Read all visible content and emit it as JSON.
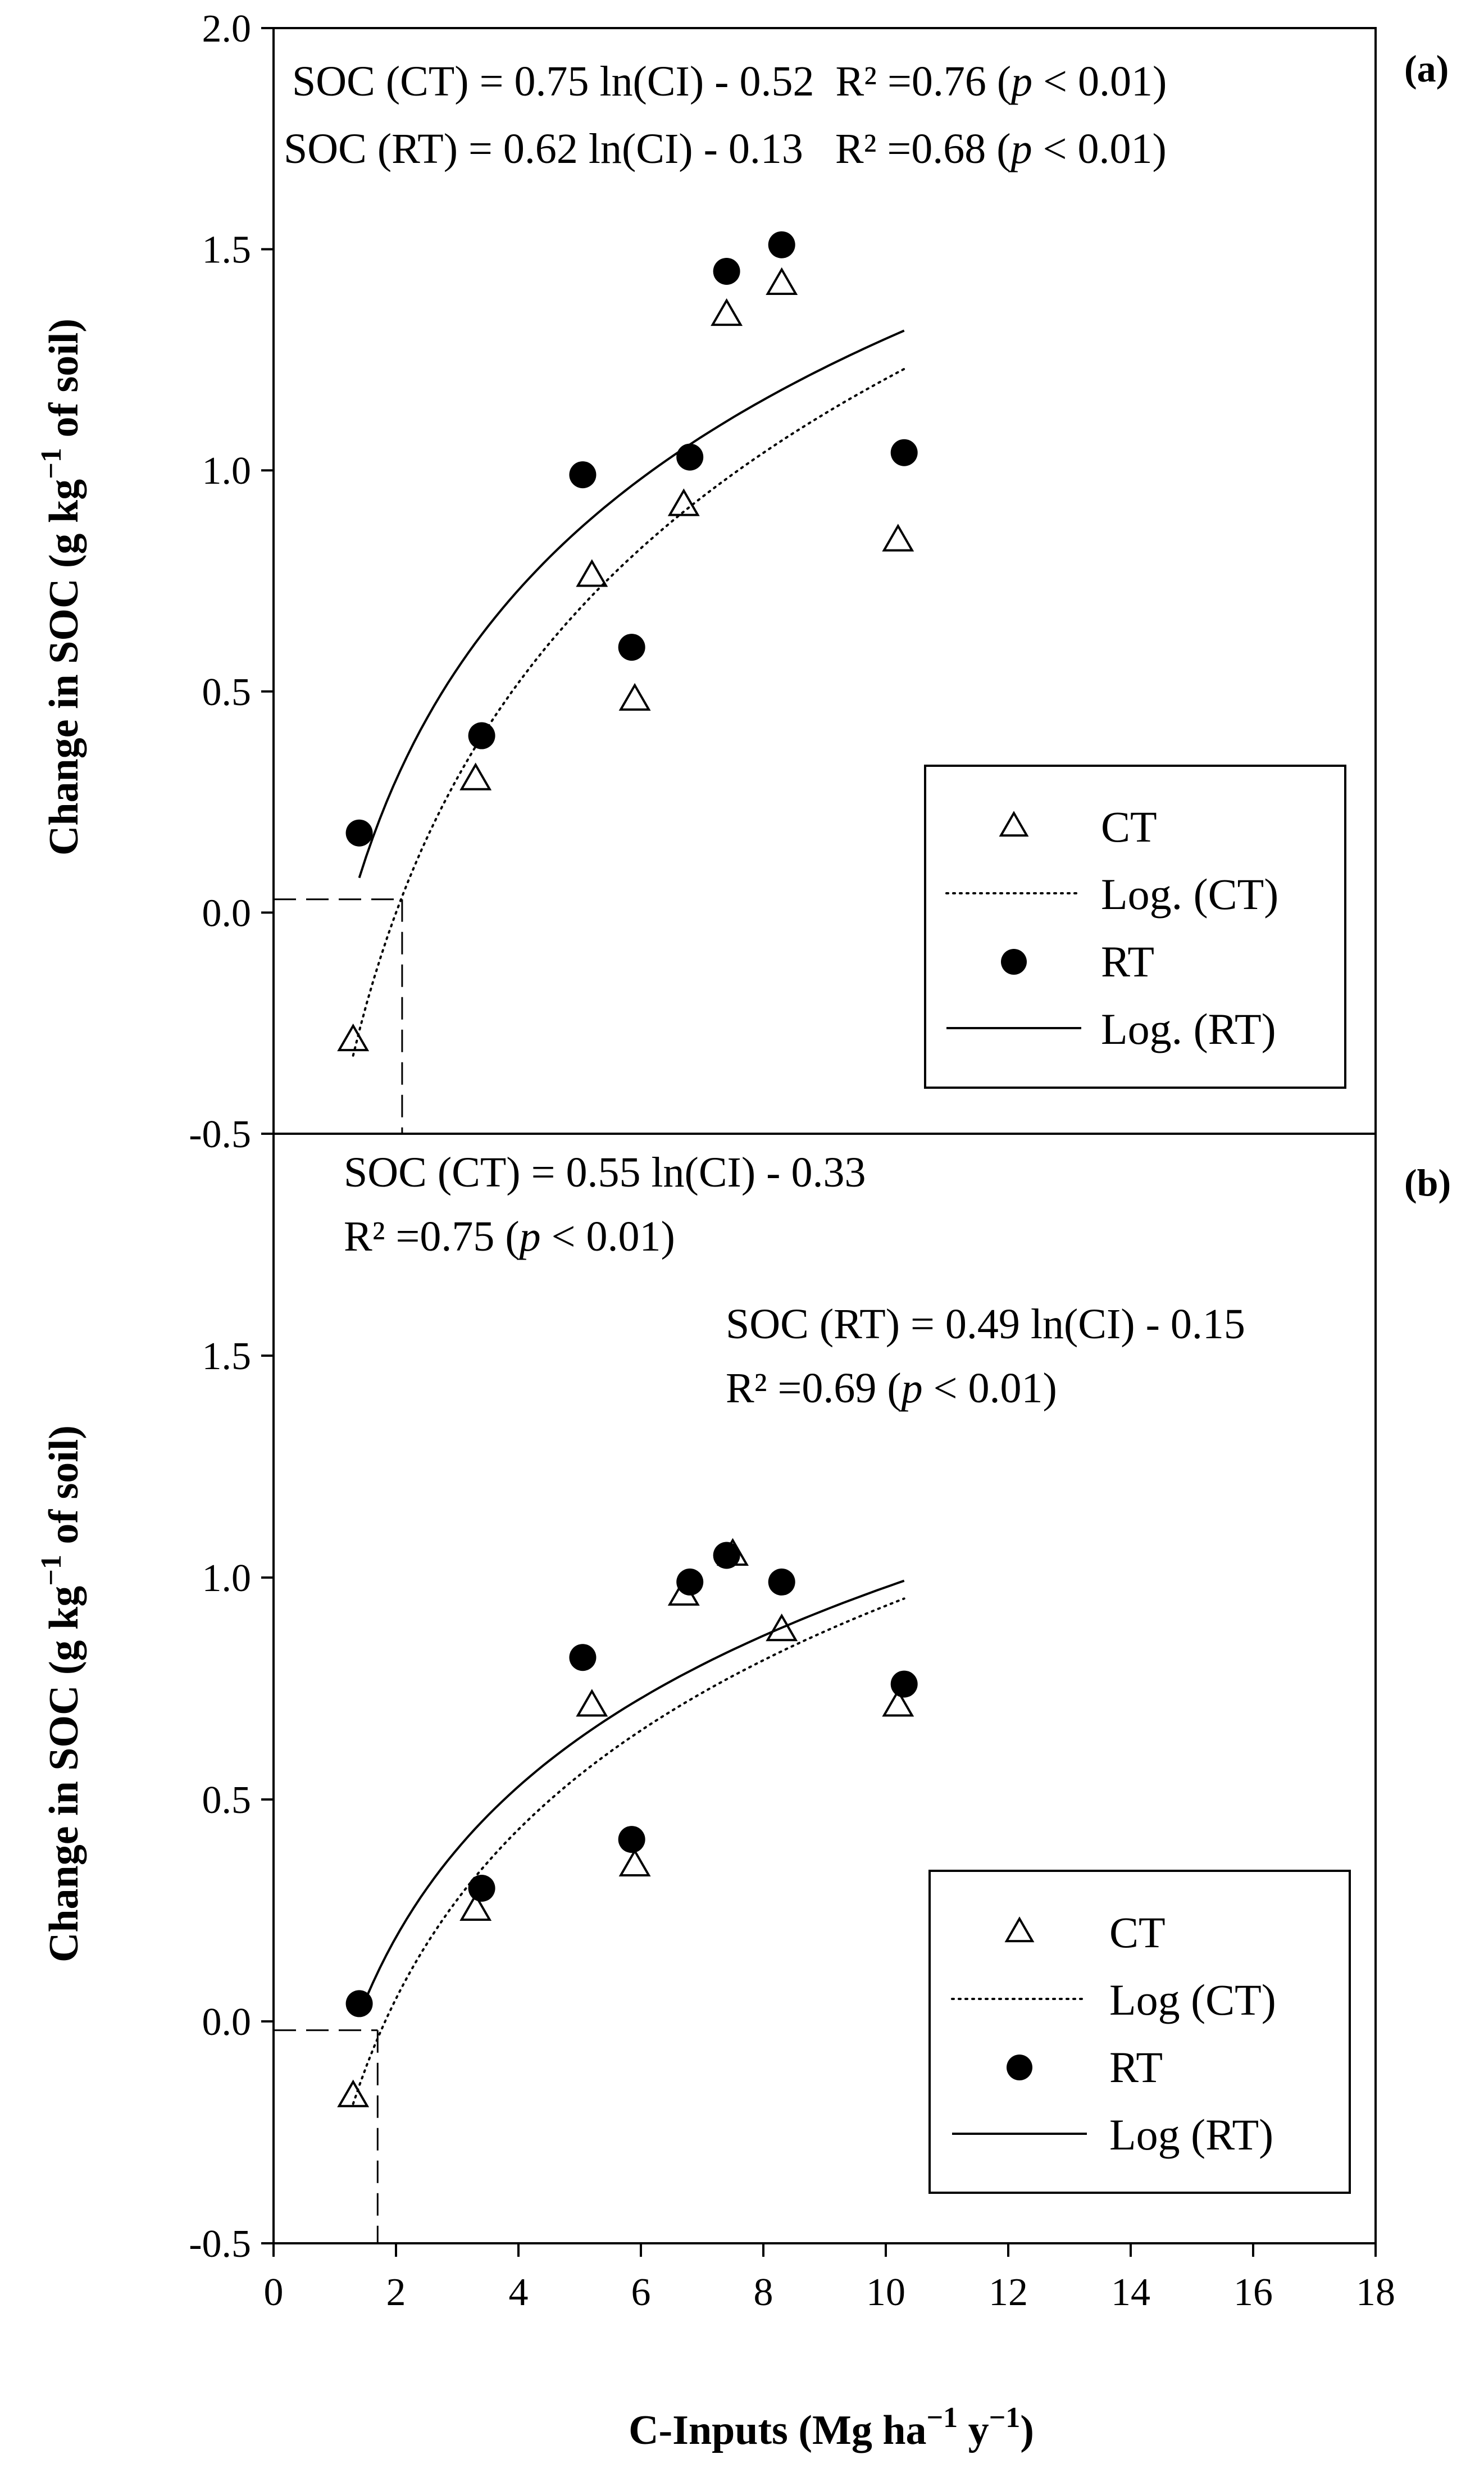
{
  "chart_data": [
    {
      "type": "scatter",
      "panel": "(a)",
      "ylabel": "Change in SOC (g kg⁻¹ of soil)",
      "ylabel_parts": {
        "pre": "Change in SOC (g kg",
        "sup": "−1",
        "post": " of soil)"
      },
      "xlim": [
        0,
        18
      ],
      "ylim": [
        -0.5,
        2.0
      ],
      "yticks": [
        "-0.5",
        "0.0",
        "0.5",
        "1.0",
        "1.5",
        "2.0"
      ],
      "yticks_values": [
        -0.5,
        0.0,
        0.5,
        1.0,
        1.5,
        2.0
      ],
      "equations": [
        {
          "text": "SOC (CT) = 0.75 ln(CI) - 0.52",
          "r2": "R² =0.76 (",
          "p": "p",
          "tail": " < 0.01)"
        },
        {
          "text": "SOC (RT) = 0.62 ln(CI) - 0.13",
          "r2": "R² =0.68 (",
          "p": "p",
          "tail": " < 0.01)"
        }
      ],
      "series": [
        {
          "name": "CT",
          "marker": "open-triangle",
          "x": [
            1.3,
            3.3,
            5.2,
            5.9,
            6.7,
            7.4,
            8.3,
            10.2
          ],
          "y": [
            -0.29,
            0.3,
            0.76,
            0.48,
            0.92,
            1.35,
            1.42,
            0.84
          ]
        },
        {
          "name": "RT",
          "marker": "filled-circle",
          "x": [
            1.4,
            3.4,
            5.05,
            5.85,
            6.8,
            7.4,
            8.3,
            10.3
          ],
          "y": [
            0.18,
            0.4,
            0.99,
            0.6,
            1.03,
            1.45,
            1.51,
            1.04
          ]
        }
      ],
      "fits": [
        {
          "name": "Log. (CT)",
          "style": "dotted",
          "a": 0.75,
          "b": -0.52,
          "xmin": 1.3,
          "xmax": 10.3
        },
        {
          "name": "Log. (RT)",
          "style": "solid",
          "a": 0.62,
          "b": -0.13,
          "xmin": 1.4,
          "xmax": 10.3
        }
      ],
      "guide": {
        "x": 2.1,
        "y": 0.03
      },
      "legend": {
        "placement": "bottom-right",
        "items": [
          {
            "label": "CT",
            "kind": "open-triangle"
          },
          {
            "label": "Log. (CT)",
            "kind": "dotted"
          },
          {
            "label": "RT",
            "kind": "filled-circle"
          },
          {
            "label": "Log. (RT)",
            "kind": "solid"
          }
        ]
      }
    },
    {
      "type": "scatter",
      "panel": "(b)",
      "ylabel": "Change in SOC (g kg⁻¹ of soil)",
      "ylabel_parts": {
        "pre": "Change in SOC (g kg",
        "sup": "−1",
        "post": " of soil)"
      },
      "xlabel": "C-Inputs (Mg ha⁻¹ y⁻¹)",
      "xlabel_parts": {
        "pre": "C-Inputs (Mg ha",
        "sup1": "−1",
        "mid": " y",
        "sup2": "−1",
        "post": ")"
      },
      "xlim": [
        0,
        18
      ],
      "ylim": [
        -0.5,
        2.0
      ],
      "xticks": [
        "0",
        "2",
        "4",
        "6",
        "8",
        "10",
        "12",
        "14",
        "16",
        "18"
      ],
      "xticks_values": [
        0,
        2,
        4,
        6,
        8,
        10,
        12,
        14,
        16,
        18
      ],
      "yticks": [
        "-0.5",
        "0.0",
        "0.5",
        "1.0",
        "1.5"
      ],
      "yticks_values": [
        -0.5,
        0.0,
        0.5,
        1.0,
        1.5
      ],
      "equations": [
        {
          "text": "SOC (CT) = 0.55 ln(CI) - 0.33",
          "r2": "R² =0.75 (",
          "p": "p",
          "tail": " < 0.01)"
        },
        {
          "text": "SOC (RT) = 0.49 ln(CI) - 0.15",
          "r2": "R² =0.69 (",
          "p": "p",
          "tail": " < 0.01)"
        }
      ],
      "series": [
        {
          "name": "CT",
          "marker": "open-triangle",
          "x": [
            1.3,
            3.3,
            5.2,
            5.9,
            6.7,
            7.5,
            8.3,
            10.2
          ],
          "y": [
            -0.17,
            0.25,
            0.71,
            0.35,
            0.96,
            1.05,
            0.88,
            0.71
          ]
        },
        {
          "name": "RT",
          "marker": "filled-circle",
          "x": [
            1.4,
            3.4,
            5.05,
            5.85,
            6.8,
            7.4,
            8.3,
            10.3
          ],
          "y": [
            0.04,
            0.3,
            0.82,
            0.41,
            0.99,
            1.05,
            0.99,
            0.76
          ]
        }
      ],
      "fits": [
        {
          "name": "Log (CT)",
          "style": "dotted",
          "a": 0.55,
          "b": -0.33,
          "xmin": 1.3,
          "xmax": 10.3
        },
        {
          "name": "Log (RT)",
          "style": "solid",
          "a": 0.49,
          "b": -0.15,
          "xmin": 1.4,
          "xmax": 10.3
        }
      ],
      "guide": {
        "x": 1.7,
        "y": -0.02
      },
      "legend": {
        "placement": "bottom-right",
        "items": [
          {
            "label": "CT",
            "kind": "open-triangle"
          },
          {
            "label": "Log (CT)",
            "kind": "dotted"
          },
          {
            "label": "RT",
            "kind": "filled-circle"
          },
          {
            "label": "Log (RT)",
            "kind": "solid"
          }
        ]
      }
    }
  ]
}
